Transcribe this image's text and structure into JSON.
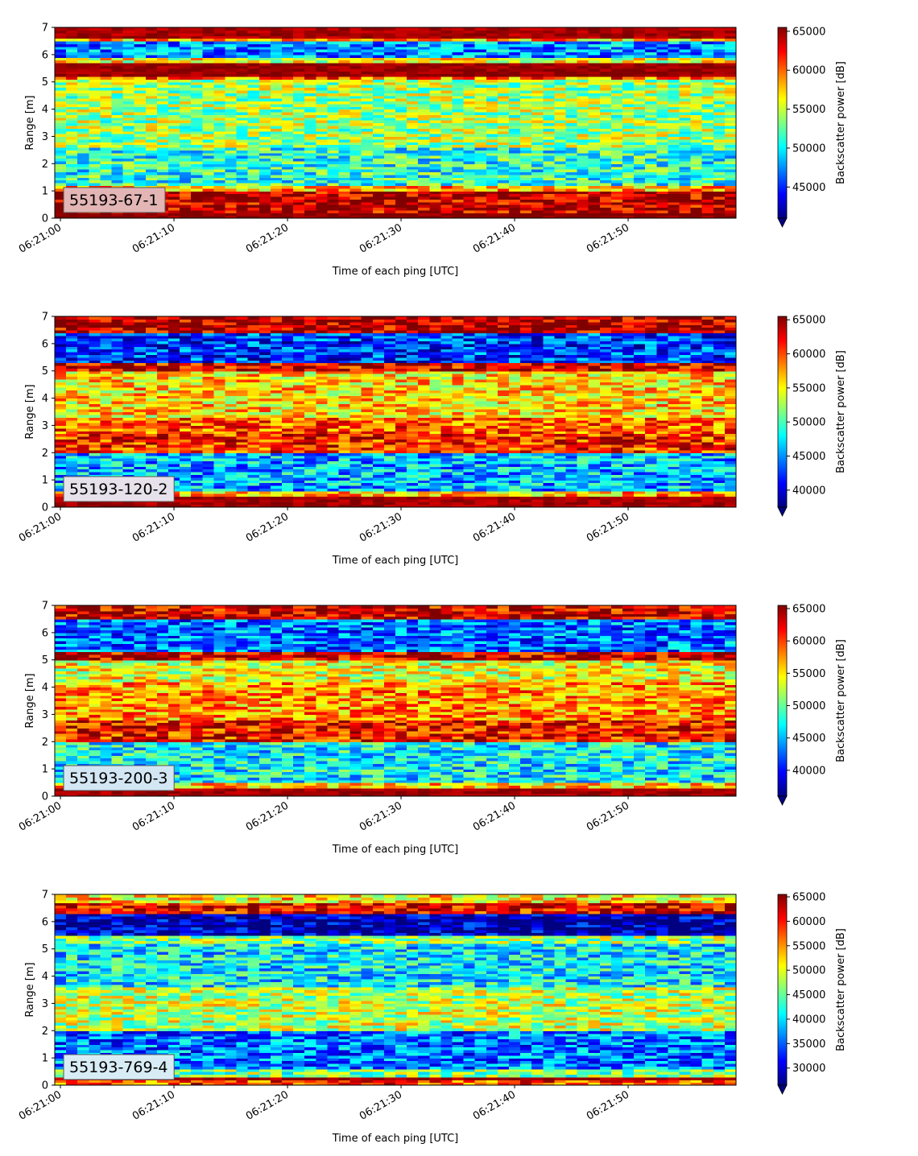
{
  "chart_data": [
    {
      "type": "heatmap",
      "panel_label": "55193-67-1",
      "xlabel": "Time of each ping [UTC]",
      "ylabel": "Range [m]",
      "colorbar_label": "Backscatter power [dB]",
      "colormap": "jet",
      "vmin": 41000,
      "vmax": 65500,
      "colorbar_ticks": [
        45000,
        50000,
        55000,
        60000,
        65000
      ],
      "ylim": [
        0,
        7
      ],
      "y_ticks": [
        0,
        1,
        2,
        3,
        4,
        5,
        6,
        7
      ],
      "x_ticks": [
        "06:21:00",
        "06:21:10",
        "06:21:20",
        "06:21:30",
        "06:21:40",
        "06:21:50"
      ],
      "label_bg": "#e3b5b5",
      "range_profile": [
        {
          "y0": 0.0,
          "y1": 0.25,
          "value": 65500
        },
        {
          "y0": 0.25,
          "y1": 1.05,
          "value": 64000
        },
        {
          "y0": 1.05,
          "y1": 1.2,
          "value": 58000
        },
        {
          "y0": 1.2,
          "y1": 2.6,
          "value": 51000
        },
        {
          "y0": 2.6,
          "y1": 5.1,
          "value": 54000
        },
        {
          "y0": 5.1,
          "y1": 5.25,
          "value": 60000
        },
        {
          "y0": 5.25,
          "y1": 5.75,
          "value": 65000
        },
        {
          "y0": 5.75,
          "y1": 5.95,
          "value": 56000
        },
        {
          "y0": 5.95,
          "y1": 6.5,
          "value": 47500
        },
        {
          "y0": 6.5,
          "y1": 6.6,
          "value": 58000
        },
        {
          "y0": 6.6,
          "y1": 7.0,
          "value": 64500
        }
      ]
    },
    {
      "type": "heatmap",
      "panel_label": "55193-120-2",
      "xlabel": "Time of each ping [UTC]",
      "ylabel": "Range [m]",
      "colorbar_label": "Backscatter power [dB]",
      "colormap": "jet",
      "vmin": 37500,
      "vmax": 65500,
      "colorbar_ticks": [
        40000,
        45000,
        50000,
        55000,
        60000,
        65000
      ],
      "ylim": [
        0,
        7
      ],
      "y_ticks": [
        0,
        1,
        2,
        3,
        4,
        5,
        6,
        7
      ],
      "x_ticks": [
        "06:21:00",
        "06:21:10",
        "06:21:20",
        "06:21:30",
        "06:21:40",
        "06:21:50"
      ],
      "label_bg": "#e6e1ea",
      "range_profile": [
        {
          "y0": 0.0,
          "y1": 0.4,
          "value": 64500
        },
        {
          "y0": 0.4,
          "y1": 0.6,
          "value": 57000
        },
        {
          "y0": 0.6,
          "y1": 2.0,
          "value": 46000
        },
        {
          "y0": 2.0,
          "y1": 2.7,
          "value": 61000
        },
        {
          "y0": 2.7,
          "y1": 3.3,
          "value": 59500
        },
        {
          "y0": 3.3,
          "y1": 5.0,
          "value": 56000
        },
        {
          "y0": 5.0,
          "y1": 5.3,
          "value": 63000
        },
        {
          "y0": 5.3,
          "y1": 6.4,
          "value": 42500
        },
        {
          "y0": 6.4,
          "y1": 7.0,
          "value": 64000
        }
      ]
    },
    {
      "type": "heatmap",
      "panel_label": "55193-200-3",
      "xlabel": "Time of each ping [UTC]",
      "ylabel": "Range [m]",
      "colorbar_label": "Backscatter power [dB]",
      "colormap": "jet",
      "vmin": 36000,
      "vmax": 65500,
      "colorbar_ticks": [
        40000,
        45000,
        50000,
        55000,
        60000,
        65000
      ],
      "ylim": [
        0,
        7
      ],
      "y_ticks": [
        0,
        1,
        2,
        3,
        4,
        5,
        6,
        7
      ],
      "x_ticks": [
        "06:21:00",
        "06:21:10",
        "06:21:20",
        "06:21:30",
        "06:21:40",
        "06:21:50"
      ],
      "label_bg": "#d3e6f4",
      "range_profile": [
        {
          "y0": 0.0,
          "y1": 0.35,
          "value": 64500
        },
        {
          "y0": 0.35,
          "y1": 0.55,
          "value": 56000
        },
        {
          "y0": 0.55,
          "y1": 2.0,
          "value": 47000
        },
        {
          "y0": 2.0,
          "y1": 2.8,
          "value": 61500
        },
        {
          "y0": 2.8,
          "y1": 4.2,
          "value": 57500
        },
        {
          "y0": 4.2,
          "y1": 5.0,
          "value": 54000
        },
        {
          "y0": 5.0,
          "y1": 5.3,
          "value": 63000
        },
        {
          "y0": 5.3,
          "y1": 6.5,
          "value": 43000
        },
        {
          "y0": 6.5,
          "y1": 7.0,
          "value": 63000
        }
      ]
    },
    {
      "type": "heatmap",
      "panel_label": "55193-769-4",
      "xlabel": "Time of each ping [UTC]",
      "ylabel": "Range [m]",
      "colorbar_label": "Backscatter power [dB]",
      "colormap": "jet",
      "vmin": 26500,
      "vmax": 65500,
      "colorbar_ticks": [
        30000,
        35000,
        40000,
        45000,
        50000,
        55000,
        60000,
        65000
      ],
      "ylim": [
        0,
        7
      ],
      "y_ticks": [
        0,
        1,
        2,
        3,
        4,
        5,
        6,
        7
      ],
      "x_ticks": [
        "06:21:00",
        "06:21:10",
        "06:21:20",
        "06:21:30",
        "06:21:40",
        "06:21:50"
      ],
      "label_bg": "#d8ecf5",
      "range_profile": [
        {
          "y0": 0.0,
          "y1": 0.2,
          "value": 58000
        },
        {
          "y0": 0.2,
          "y1": 0.35,
          "value": 64000
        },
        {
          "y0": 0.35,
          "y1": 0.6,
          "value": 46000
        },
        {
          "y0": 0.6,
          "y1": 2.0,
          "value": 36000
        },
        {
          "y0": 2.0,
          "y1": 3.6,
          "value": 48500
        },
        {
          "y0": 3.6,
          "y1": 5.2,
          "value": 40500
        },
        {
          "y0": 5.2,
          "y1": 5.5,
          "value": 47000
        },
        {
          "y0": 5.5,
          "y1": 6.35,
          "value": 28500
        },
        {
          "y0": 6.35,
          "y1": 6.7,
          "value": 61000
        },
        {
          "y0": 6.7,
          "y1": 7.0,
          "value": 52000
        }
      ]
    }
  ]
}
